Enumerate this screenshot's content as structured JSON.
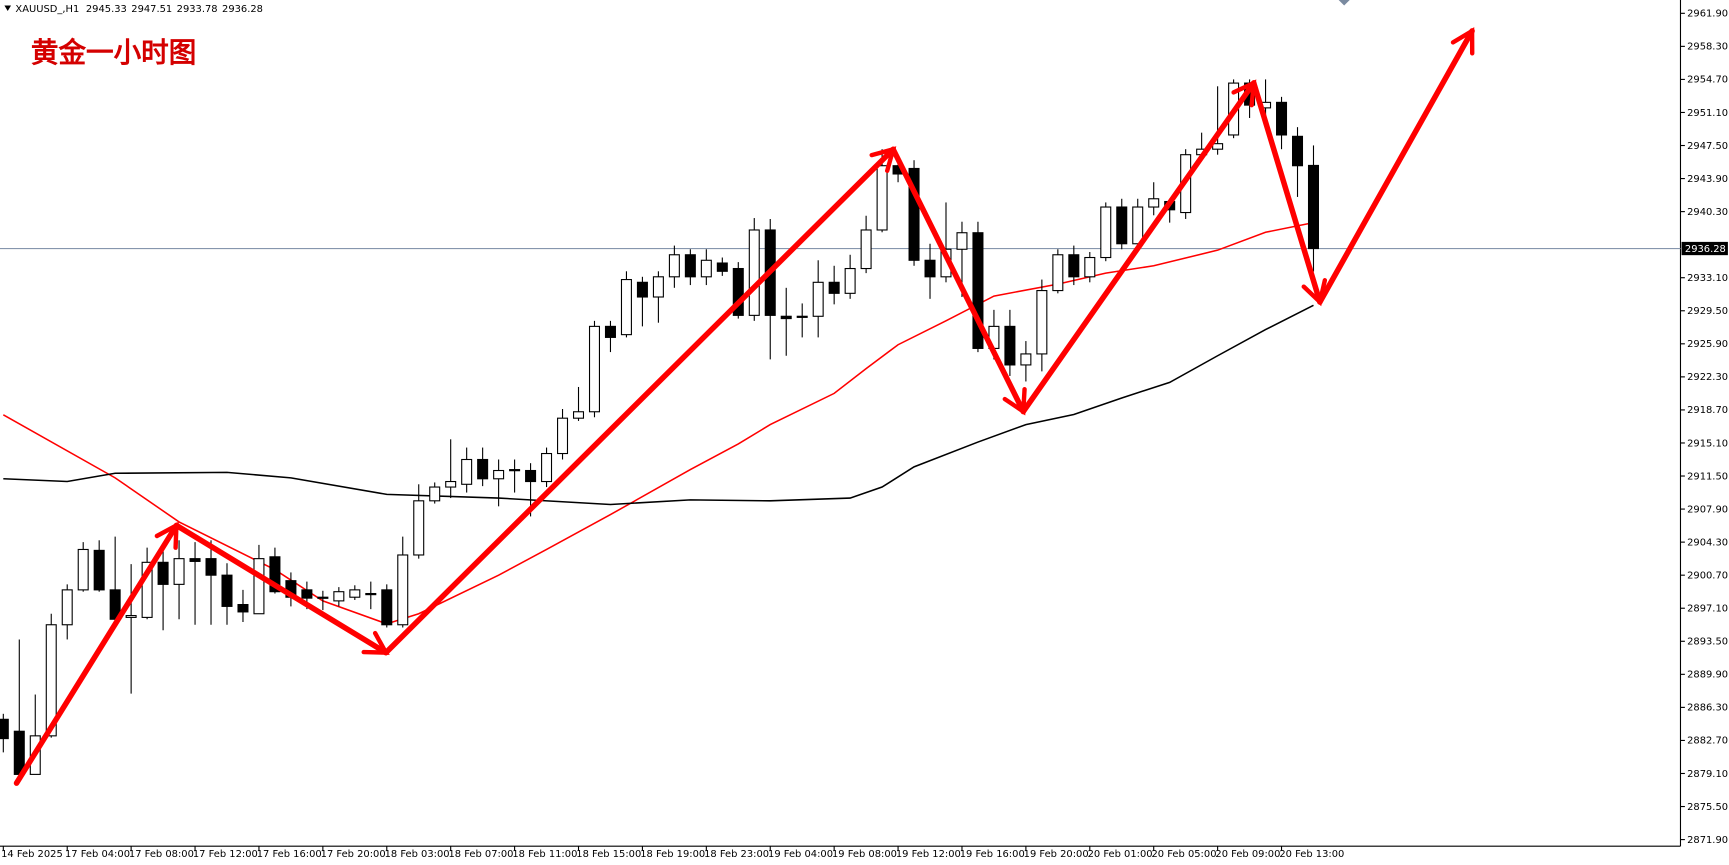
{
  "chart_data": {
    "type": "candlestick",
    "title": "黄金一小时图",
    "symbol": "XAUUSD_,H1",
    "header_ohlc": [
      2945.33,
      2947.51,
      2933.78,
      2936.28
    ],
    "categories": [
      "14 Feb 2025",
      null,
      null,
      null,
      "17 Feb 04:00",
      null,
      null,
      null,
      "17 Feb 08:00",
      null,
      null,
      null,
      "17 Feb 12:00",
      null,
      null,
      null,
      "17 Feb 16:00",
      null,
      null,
      null,
      "17 Feb 20:00",
      null,
      null,
      null,
      "18 Feb 03:00",
      null,
      null,
      null,
      "18 Feb 07:00",
      null,
      null,
      null,
      "18 Feb 11:00",
      null,
      null,
      null,
      "18 Feb 15:00",
      null,
      null,
      null,
      "18 Feb 19:00",
      null,
      null,
      null,
      "18 Feb 23:00",
      null,
      null,
      null,
      "19 Feb 04:00",
      null,
      null,
      null,
      "19 Feb 08:00",
      null,
      null,
      null,
      "19 Feb 12:00",
      null,
      null,
      null,
      "19 Feb 16:00",
      null,
      null,
      null,
      "19 Feb 20:00",
      null,
      null,
      null,
      "20 Feb 01:00",
      null,
      null,
      null,
      "20 Feb 05:00",
      null,
      null,
      null,
      "20 Feb 09:00",
      null,
      null,
      null,
      "20 Feb 13:00",
      null,
      null
    ],
    "open": [
      2885.0,
      2883.7,
      2879.0,
      2883.2,
      2895.3,
      2899.1,
      2903.4,
      2899.1,
      2896.1,
      2896.1,
      2902.1,
      2899.7,
      2902.5,
      2902.5,
      2900.7,
      2897.5,
      2896.5,
      2902.7,
      2900.1,
      2899.1,
      2898.3,
      2897.9,
      2898.3,
      2898.6,
      2899.1,
      2895.3,
      2902.9,
      2908.8,
      2910.3,
      2910.6,
      2913.3,
      2911.2,
      2912.1,
      2912.1,
      2910.9,
      2913.95,
      2917.8,
      2918.5,
      2927.8,
      2926.9,
      2932.6,
      2931.0,
      2933.2,
      2935.6,
      2933.2,
      2934.7,
      2934.1,
      2929.0,
      2938.3,
      2928.9,
      2928.8,
      2928.9,
      2932.6,
      2931.4,
      2934.1,
      2938.3,
      2945.3,
      2945.0,
      2935.0,
      2933.2,
      2936.2,
      2938.0,
      2925.4,
      2927.8,
      2923.6,
      2924.8,
      2931.7,
      2935.6,
      2933.2,
      2935.3,
      2940.8,
      2936.8,
      2940.8,
      2941.4,
      2940.2,
      2946.5,
      2947.1,
      2948.65,
      2954.3,
      2951.6,
      2952.2,
      2948.5,
      2945.33
    ],
    "high": [
      2885.6,
      2893.7,
      2887.7,
      2896.5,
      2899.7,
      2904.3,
      2904.5,
      2904.9,
      2901.9,
      2903.7,
      2903.7,
      2904.5,
      2904.3,
      2904.5,
      2902.0,
      2899.1,
      2904.0,
      2903.7,
      2901.0,
      2900.0,
      2899.0,
      2899.4,
      2899.6,
      2900.0,
      2899.7,
      2904.9,
      2910.6,
      2910.8,
      2915.5,
      2914.6,
      2914.6,
      2913.3,
      2913.3,
      2912.9,
      2914.6,
      2918.8,
      2921.2,
      2928.4,
      2928.4,
      2933.8,
      2933.2,
      2933.8,
      2936.6,
      2936.2,
      2936.2,
      2935.3,
      2934.8,
      2939.6,
      2939.5,
      2932.0,
      2930.3,
      2935.0,
      2934.4,
      2935.6,
      2939.85,
      2947.1,
      2946.0,
      2945.9,
      2936.8,
      2941.3,
      2939.2,
      2939.2,
      2929.6,
      2929.6,
      2926.2,
      2932.9,
      2936.2,
      2936.6,
      2935.9,
      2941.3,
      2941.7,
      2941.7,
      2943.5,
      2941.7,
      2947.1,
      2948.9,
      2953.95,
      2954.7,
      2954.7,
      2954.7,
      2952.8,
      2949.5,
      2947.51
    ],
    "low": [
      2881.4,
      2879.0,
      2879.0,
      2883.0,
      2893.7,
      2898.9,
      2898.9,
      2895.6,
      2887.8,
      2895.9,
      2894.7,
      2895.9,
      2895.3,
      2895.3,
      2895.3,
      2895.6,
      2896.5,
      2898.7,
      2897.3,
      2897.0,
      2896.9,
      2897.3,
      2898.0,
      2897.0,
      2895.0,
      2895.0,
      2902.5,
      2908.5,
      2909.1,
      2909.7,
      2910.4,
      2908.2,
      2909.7,
      2907.1,
      2910.3,
      2913.3,
      2917.5,
      2917.9,
      2925.0,
      2926.6,
      2927.8,
      2928.2,
      2932.0,
      2932.3,
      2932.3,
      2933.3,
      2928.65,
      2928.4,
      2924.2,
      2924.6,
      2926.6,
      2926.6,
      2930.2,
      2930.8,
      2933.6,
      2938.05,
      2943.5,
      2934.4,
      2930.8,
      2932.6,
      2931.0,
      2925.0,
      2924.2,
      2922.4,
      2921.8,
      2922.9,
      2931.4,
      2932.3,
      2932.6,
      2934.9,
      2936.2,
      2936.2,
      2939.9,
      2939.1,
      2939.5,
      2945.9,
      2946.5,
      2948.3,
      2950.5,
      2949.5,
      2947.1,
      2941.9,
      2933.78
    ],
    "close": [
      2882.9,
      2879.0,
      2883.2,
      2895.3,
      2899.1,
      2903.5,
      2899.1,
      2895.9,
      2896.3,
      2902.1,
      2899.7,
      2902.5,
      2902.2,
      2900.7,
      2897.3,
      2896.7,
      2902.5,
      2898.9,
      2898.3,
      2898.2,
      2898.2,
      2898.9,
      2899.1,
      2898.7,
      2895.3,
      2902.9,
      2908.8,
      2910.3,
      2910.9,
      2913.3,
      2911.2,
      2912.1,
      2912.2,
      2910.9,
      2913.95,
      2917.8,
      2918.5,
      2927.8,
      2926.6,
      2932.9,
      2931.0,
      2933.2,
      2935.6,
      2933.2,
      2935.0,
      2933.8,
      2929.0,
      2938.3,
      2929.0,
      2928.65,
      2928.9,
      2932.6,
      2931.4,
      2934.1,
      2938.3,
      2945.3,
      2944.4,
      2935.0,
      2933.2,
      2936.2,
      2938.0,
      2925.4,
      2927.8,
      2923.6,
      2924.8,
      2931.7,
      2935.6,
      2933.2,
      2935.3,
      2940.8,
      2936.8,
      2940.8,
      2941.7,
      2940.5,
      2946.5,
      2947.1,
      2947.7,
      2954.3,
      2951.9,
      2952.2,
      2948.65,
      2945.3,
      2936.28
    ],
    "up_color": "#ffffff",
    "down_color": "#000000",
    "current_price": 2936.28,
    "lines": [
      {
        "color": "#ff0000",
        "x": [
          0,
          7,
          11,
          17,
          20,
          24,
          26,
          31,
          34,
          38,
          43,
          46,
          48,
          52,
          54,
          56,
          59,
          62,
          66,
          69,
          72,
          76,
          79,
          82
        ],
        "values": [
          2918.17,
          2911.3,
          2906.5,
          2901.3,
          2897.9,
          2895.4,
          2896.5,
          2900.7,
          2903.5,
          2907.3,
          2912.2,
          2915.0,
          2917.1,
          2920.5,
          2923.2,
          2925.8,
          2928.4,
          2931.1,
          2932.4,
          2933.6,
          2934.4,
          2936.1,
          2938.05,
          2939.1
        ]
      },
      {
        "color": "#000000",
        "x": [
          0,
          4,
          7,
          14,
          18,
          24,
          31,
          38,
          43,
          48,
          53,
          55,
          57,
          61,
          64,
          67,
          70,
          73,
          76,
          79,
          82
        ],
        "values": [
          2911.2,
          2910.9,
          2911.8,
          2911.9,
          2911.3,
          2909.5,
          2909.1,
          2908.4,
          2908.9,
          2908.8,
          2909.1,
          2910.3,
          2912.5,
          2915.2,
          2917.1,
          2918.2,
          2920.0,
          2921.7,
          2924.6,
          2927.45,
          2930.1
        ]
      }
    ],
    "ylim": [
      2871.18,
      2963.35
    ],
    "yticks": [
      {
        "value": 2961.9,
        "label": "2961.90"
      },
      {
        "value": 2958.3,
        "label": "2958.30"
      },
      {
        "value": 2954.7,
        "label": "2954.70"
      },
      {
        "value": 2951.1,
        "label": "2951.10"
      },
      {
        "value": 2947.5,
        "label": "2947.50"
      },
      {
        "value": 2943.9,
        "label": "2943.90"
      },
      {
        "value": 2940.3,
        "label": "2940.30"
      },
      {
        "value": 2933.1,
        "label": "2933.10"
      },
      {
        "value": 2929.5,
        "label": "2929.50"
      },
      {
        "value": 2925.9,
        "label": "2925.90"
      },
      {
        "value": 2922.3,
        "label": "2922.30"
      },
      {
        "value": 2918.7,
        "label": "2918.70"
      },
      {
        "value": 2915.1,
        "label": "2915.10"
      },
      {
        "value": 2911.5,
        "label": "2911.50"
      },
      {
        "value": 2907.9,
        "label": "2907.90"
      },
      {
        "value": 2904.3,
        "label": "2904.30"
      },
      {
        "value": 2900.7,
        "label": "2900.70"
      },
      {
        "value": 2897.1,
        "label": "2897.10"
      },
      {
        "value": 2893.5,
        "label": "2893.50"
      },
      {
        "value": 2889.9,
        "label": "2889.90"
      },
      {
        "value": 2886.3,
        "label": "2886.30"
      },
      {
        "value": 2882.7,
        "label": "2882.70"
      },
      {
        "value": 2879.1,
        "label": "2879.10"
      },
      {
        "value": 2875.5,
        "label": "2875.50"
      },
      {
        "value": 2871.9,
        "label": "2871.90"
      }
    ]
  }
}
